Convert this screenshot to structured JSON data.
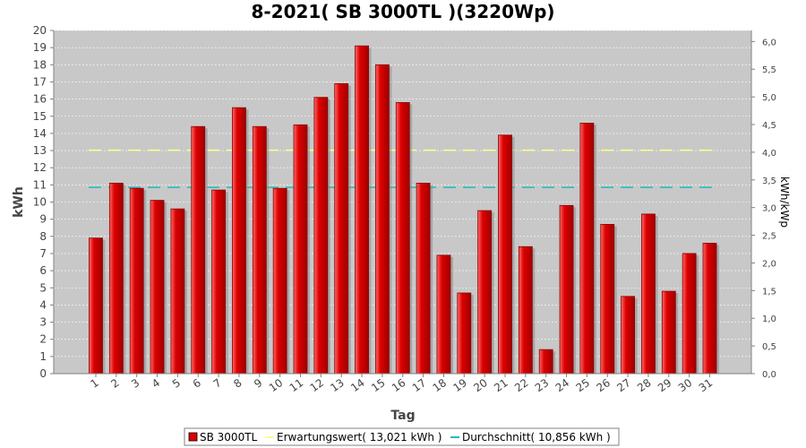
{
  "chart_data": {
    "type": "bar",
    "title": "8-2021( SB 3000TL )(3220Wp)",
    "xlabel": "Tag",
    "ylabel": "kWh",
    "y2label": "kWh/kWp",
    "ylim": [
      0,
      20
    ],
    "y2lim": [
      0,
      6.2
    ],
    "yticks": [
      "0",
      "1",
      "2",
      "3",
      "4",
      "5",
      "6",
      "7",
      "8",
      "9",
      "10",
      "11",
      "12",
      "13",
      "14",
      "15",
      "16",
      "17",
      "18",
      "19",
      "20"
    ],
    "y2ticks": [
      "0,0",
      "0,5",
      "1,0",
      "1,5",
      "2,0",
      "2,5",
      "3,0",
      "3,5",
      "4,0",
      "4,5",
      "5,0",
      "5,5",
      "6,0"
    ],
    "categories": [
      "1",
      "2",
      "3",
      "4",
      "5",
      "6",
      "7",
      "8",
      "9",
      "10",
      "11",
      "12",
      "13",
      "14",
      "15",
      "16",
      "17",
      "18",
      "19",
      "20",
      "21",
      "22",
      "23",
      "24",
      "25",
      "26",
      "27",
      "28",
      "29",
      "30",
      "31"
    ],
    "grid": true,
    "legend_position": "bottom",
    "colors": {
      "bar": "#dd0000",
      "expected": "#ffff88",
      "average": "#22bbbb",
      "plot_bg": "#c8c8c8",
      "grid": "#ffffff"
    },
    "series": [
      {
        "name": "SB 3000TL",
        "type": "bar",
        "values": [
          7.9,
          11.1,
          10.8,
          10.1,
          9.6,
          14.4,
          10.7,
          15.5,
          14.4,
          10.8,
          14.5,
          16.1,
          16.9,
          19.1,
          18.0,
          15.8,
          11.1,
          6.9,
          4.7,
          9.5,
          13.9,
          7.4,
          1.4,
          9.8,
          14.6,
          8.7,
          4.5,
          9.3,
          4.8,
          7.0,
          7.6
        ]
      },
      {
        "name": "Erwartungswert( 13,021 kWh )",
        "type": "line",
        "value": 13.021
      },
      {
        "name": "Durchschnitt( 10,856 kWh )",
        "type": "line",
        "value": 10.856
      }
    ]
  }
}
